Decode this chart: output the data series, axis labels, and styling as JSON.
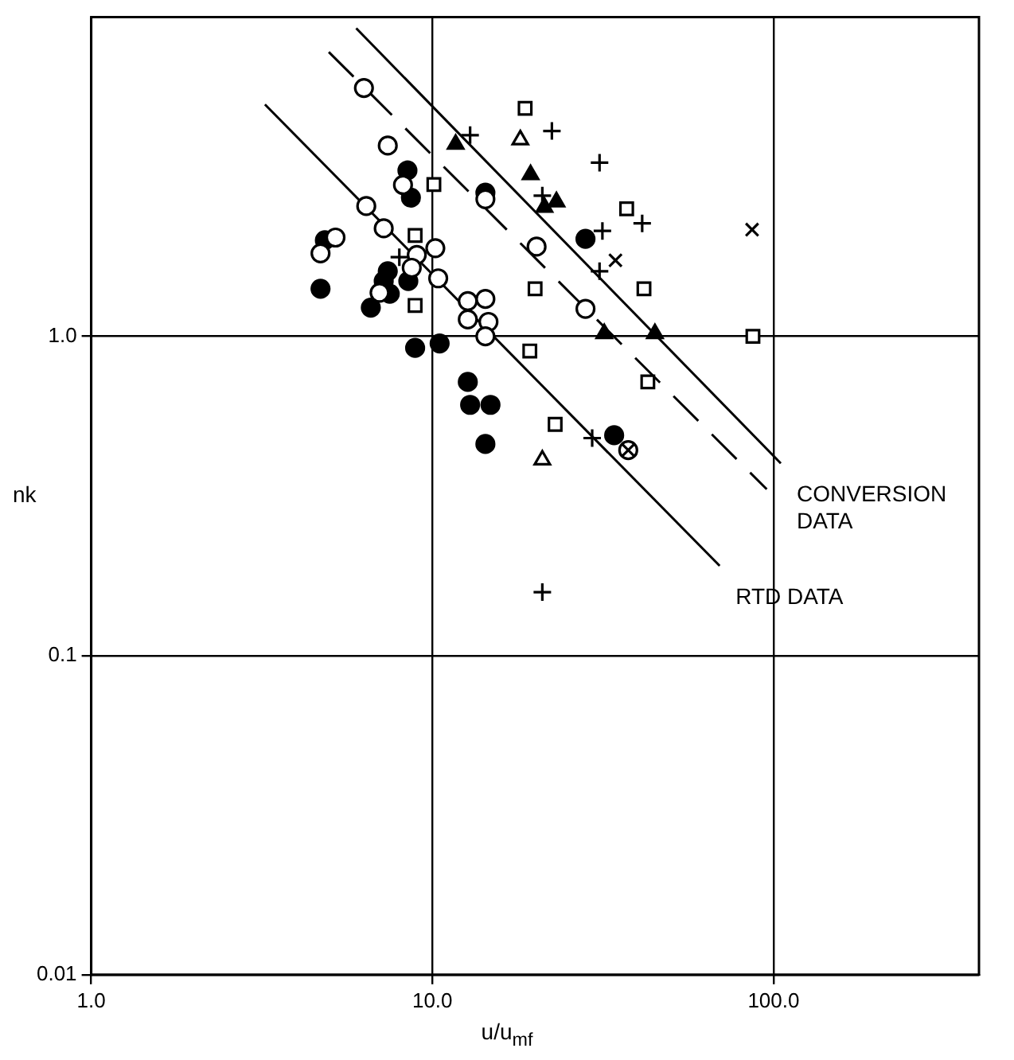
{
  "chart_data": {
    "type": "scatter",
    "xlabel": "u/u$_{mf}$",
    "ylabel": "nk",
    "log": "xy",
    "grid": true,
    "legend": false,
    "xlim": [
      1,
      400
    ],
    "ylim": [
      0.01,
      10
    ],
    "xticks": [
      {
        "value": 1,
        "label": "1.0"
      },
      {
        "value": 10,
        "label": "10.0"
      },
      {
        "value": 100,
        "label": "100.0"
      }
    ],
    "yticks": [
      0.01,
      0.1,
      {
        "value": 1,
        "label": "1.0"
      }
    ],
    "series": [
      {
        "type": "scatter",
        "marker": "circle",
        "color": "#ffffff",
        "x": [
          6.3,
          7.4,
          8.2,
          6.4,
          7.2,
          5.2,
          4.7,
          9.0,
          10.2,
          8.7,
          10.4,
          7.0,
          12.7,
          14.3,
          12.7,
          14.6,
          14.3,
          14.3,
          20.2,
          28.1,
          37.5
        ],
        "values": [
          6.0,
          3.96,
          2.98,
          2.56,
          2.18,
          2.04,
          1.82,
          1.8,
          1.89,
          1.64,
          1.52,
          1.37,
          1.29,
          1.31,
          1.13,
          1.11,
          1.0,
          2.69,
          1.91,
          1.22,
          0.44
        ]
      },
      {
        "type": "scatter",
        "marker": "circle",
        "color": "#000000",
        "x": [
          8.45,
          8.65,
          4.84,
          4.7,
          7.4,
          7.2,
          7.5,
          6.6,
          8.5,
          28.1,
          8.9,
          10.5,
          12.7,
          12.9,
          14.8,
          14.3,
          34.1,
          14.3
        ],
        "values": [
          3.31,
          2.72,
          2.0,
          1.41,
          1.6,
          1.49,
          1.36,
          1.23,
          1.49,
          2.02,
          0.92,
          0.95,
          0.72,
          0.61,
          0.61,
          0.46,
          0.49,
          2.82
        ]
      },
      {
        "type": "scatter",
        "marker": "square",
        "color": "#ffffff",
        "x": [
          10.1,
          19.3,
          18.7,
          37.1,
          8.9,
          20.0,
          41.7,
          8.9,
          87,
          42.8,
          22.9
        ],
        "values": [
          2.99,
          0.9,
          5.18,
          2.51,
          2.07,
          1.41,
          1.41,
          1.25,
          1.0,
          0.72,
          0.53
        ]
      },
      {
        "type": "scatter",
        "marker": "triangle",
        "color": "#000000",
        "x": [
          11.7,
          19.4,
          21.3,
          23.1,
          31.9,
          44.9
        ],
        "values": [
          4.0,
          3.21,
          2.54,
          2.64,
          1.02,
          1.02
        ]
      },
      {
        "type": "scatter",
        "marker": "triangle",
        "color": "#ffffff",
        "x": [
          18.1,
          21.0
        ],
        "values": [
          4.13,
          0.41
        ]
      },
      {
        "type": "scatter",
        "marker": "plus",
        "color": "#000000",
        "x": [
          12.9,
          22.4,
          30.9,
          31.5,
          30.9,
          8.0,
          41.2,
          29.4,
          21.0,
          21.0
        ],
        "values": [
          4.27,
          4.4,
          3.5,
          2.14,
          1.6,
          1.77,
          2.26,
          0.48,
          0.158,
          2.76
        ]
      },
      {
        "type": "scatter",
        "marker": "cross",
        "color": "#000000",
        "x": [
          34.4,
          86.5,
          37.5
        ],
        "values": [
          1.73,
          2.16,
          0.44
        ]
      },
      {
        "type": "line",
        "marker": "none",
        "line_style": "solid",
        "color": "#000000",
        "x": [
          3.23,
          69.5
        ],
        "values": [
          5.33,
          0.191
        ]
      },
      {
        "type": "line",
        "marker": "none",
        "line_style": "dashed",
        "color": "#000000",
        "x": [
          4.97,
          95.5
        ],
        "values": [
          7.78,
          0.332
        ]
      },
      {
        "type": "line",
        "marker": "none",
        "line_style": "solid",
        "color": "#000000",
        "x": [
          5.98,
          105
        ],
        "values": [
          9.23,
          0.4
        ]
      }
    ],
    "annotations": [
      {
        "text": "CONVERSION\nDATA",
        "x": 105,
        "y": 0.4
      },
      {
        "text": "RTD DATA",
        "x": 69.5,
        "y": 0.191
      }
    ]
  }
}
